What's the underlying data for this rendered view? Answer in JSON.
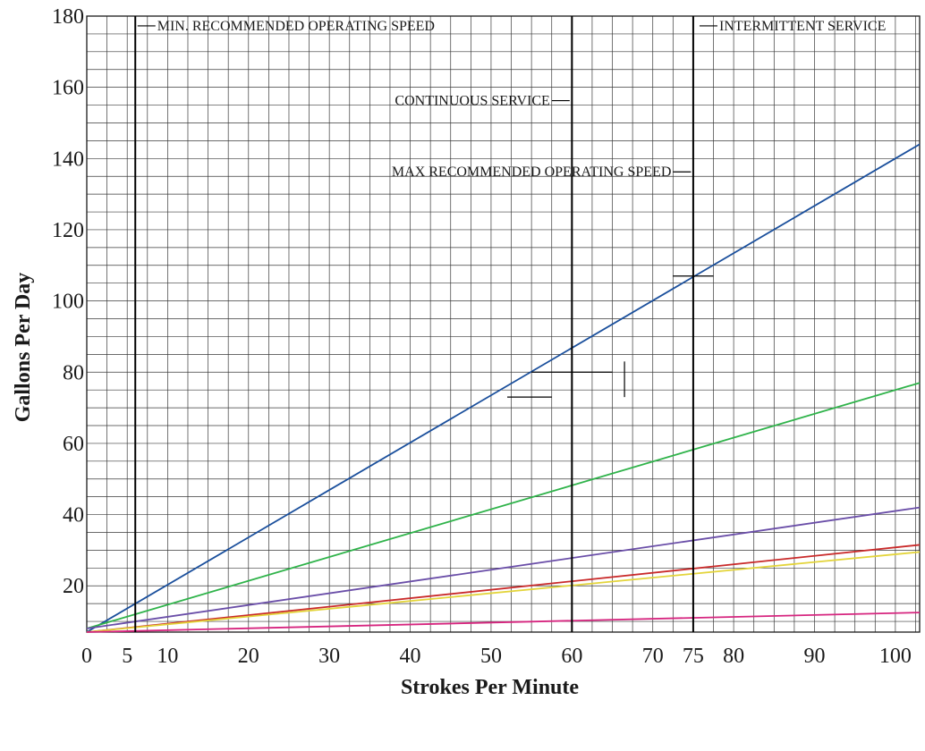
{
  "chart_data": {
    "type": "line",
    "xlabel": "Strokes Per Minute",
    "ylabel": "Gallons Per Day",
    "xlim": [
      0,
      103
    ],
    "ylim": [
      7,
      180
    ],
    "grid": true,
    "x_ticks": [
      {
        "value": 0,
        "label": "0"
      },
      {
        "value": 5,
        "label": "5"
      },
      {
        "value": 10,
        "label": "10"
      },
      {
        "value": 20,
        "label": "20"
      },
      {
        "value": 30,
        "label": "30"
      },
      {
        "value": 40,
        "label": "40"
      },
      {
        "value": 50,
        "label": "50"
      },
      {
        "value": 60,
        "label": "60"
      },
      {
        "value": 70,
        "label": "70"
      },
      {
        "value": 75,
        "label": "75"
      },
      {
        "value": 80,
        "label": "80"
      },
      {
        "value": 90,
        "label": "90"
      },
      {
        "value": 100,
        "label": "100"
      }
    ],
    "y_ticks": [
      {
        "value": 20,
        "label": "20"
      },
      {
        "value": 40,
        "label": "40"
      },
      {
        "value": 60,
        "label": "60"
      },
      {
        "value": 80,
        "label": "80"
      },
      {
        "value": 100,
        "label": "100"
      },
      {
        "value": 120,
        "label": "120"
      },
      {
        "value": 140,
        "label": "140"
      },
      {
        "value": 160,
        "label": "160"
      },
      {
        "value": 180,
        "label": "180"
      }
    ],
    "series": [
      {
        "color": "#1a4f9c",
        "x": [
          0,
          103
        ],
        "y": [
          7,
          144
        ]
      },
      {
        "color": "#2fb34a",
        "x": [
          0,
          103
        ],
        "y": [
          8,
          77
        ]
      },
      {
        "color": "#6a4ea8",
        "x": [
          0,
          103
        ],
        "y": [
          8,
          42
        ]
      },
      {
        "color": "#c92a2a",
        "x": [
          0,
          103
        ],
        "y": [
          7,
          31.5
        ]
      },
      {
        "color": "#e3d43a",
        "x": [
          0,
          103
        ],
        "y": [
          7,
          29.5
        ]
      },
      {
        "color": "#d6257f",
        "x": [
          0,
          103
        ],
        "y": [
          7,
          12.5
        ]
      }
    ],
    "reference_lines": [
      {
        "x": 6
      },
      {
        "x": 60
      },
      {
        "x": 75
      }
    ],
    "annotations": [
      {
        "text": "MIN. RECOMMENDED OPERATING SPEED",
        "x": 6.5,
        "y": 176,
        "anchor": "start"
      },
      {
        "text": "INTERMITTENT SERVICE",
        "x": 76,
        "y": 176,
        "anchor": "start"
      },
      {
        "text": "CONTINUOUS SERVICE",
        "x": 59.5,
        "y": 155,
        "anchor": "end"
      },
      {
        "text": "MAX RECOMMENDED OPERATING SPEED",
        "x": 74.5,
        "y": 135,
        "anchor": "end"
      }
    ]
  }
}
